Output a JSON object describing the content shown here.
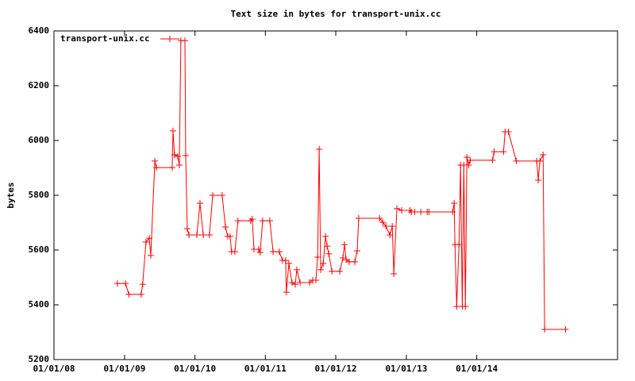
{
  "chart_data": {
    "type": "line",
    "title": "Text size in bytes for transport-unix.cc",
    "ylabel": "bytes",
    "legend": "top left",
    "x": [
      "2008-11-25",
      "2009-01-06",
      "2009-01-23",
      "2009-03-28",
      "2009-04-05",
      "2009-04-22",
      "2009-05-09",
      "2009-05-17",
      "2009-06-07",
      "2009-06-15",
      "2009-09-05",
      "2009-09-09",
      "2009-09-17",
      "2009-10-04",
      "2009-10-12",
      "2009-10-20",
      "2009-11-10",
      "2009-11-14",
      "2009-11-22",
      "2009-12-01",
      "2010-01-11",
      "2010-01-27",
      "2010-02-13",
      "2010-03-17",
      "2010-04-03",
      "2010-05-22",
      "2010-06-08",
      "2010-06-20",
      "2010-07-02",
      "2010-07-10",
      "2010-07-27",
      "2010-08-12",
      "2010-10-17",
      "2010-10-25",
      "2010-11-03",
      "2010-11-27",
      "2010-12-05",
      "2010-12-18",
      "2011-01-24",
      "2011-02-10",
      "2011-03-14",
      "2011-03-31",
      "2011-04-16",
      "2011-04-20",
      "2011-05-03",
      "2011-05-19",
      "2011-06-05",
      "2011-06-13",
      "2011-06-30",
      "2011-08-18",
      "2011-09-04",
      "2011-09-20",
      "2011-09-29",
      "2011-10-07",
      "2011-10-15",
      "2011-10-28",
      "2011-11-09",
      "2011-11-17",
      "2011-11-26",
      "2011-12-12",
      "2012-01-22",
      "2012-02-07",
      "2012-02-15",
      "2012-02-24",
      "2012-03-11",
      "2012-04-09",
      "2012-04-21",
      "2012-04-29",
      "2012-08-15",
      "2012-09-01",
      "2012-09-17",
      "2012-10-08",
      "2012-10-20",
      "2012-10-28",
      "2012-11-13",
      "2012-12-08",
      "2013-01-19",
      "2013-01-27",
      "2013-02-13",
      "2013-03-17",
      "2013-04-19",
      "2013-04-28",
      "2013-08-29",
      "2013-09-06",
      "2013-09-10",
      "2013-09-19",
      "2013-10-01",
      "2013-10-09",
      "2013-10-18",
      "2013-10-26",
      "2013-11-03",
      "2013-11-11",
      "2013-11-20",
      "2013-11-28",
      "2014-03-24",
      "2014-04-01",
      "2014-05-20",
      "2014-05-28",
      "2014-06-14",
      "2014-07-25",
      "2014-11-08",
      "2014-11-16",
      "2014-11-24",
      "2014-12-11",
      "2014-12-19",
      "2015-04-06"
    ],
    "series": [
      {
        "name": "transport-unix.cc",
        "color": "#ff0000",
        "values": [
          5478,
          5478,
          5438,
          5438,
          5475,
          5629,
          5643,
          5580,
          5925,
          5901,
          5901,
          6035,
          5948,
          5942,
          5910,
          6365,
          6365,
          5945,
          5678,
          5655,
          5655,
          5771,
          5655,
          5655,
          5800,
          5800,
          5684,
          5650,
          5650,
          5594,
          5594,
          5707,
          5707,
          5713,
          5603,
          5603,
          5591,
          5707,
          5707,
          5594,
          5594,
          5562,
          5562,
          5446,
          5551,
          5481,
          5475,
          5528,
          5481,
          5481,
          5490,
          5490,
          5574,
          5968,
          5528,
          5551,
          5650,
          5614,
          5586,
          5522,
          5522,
          5571,
          5620,
          5565,
          5557,
          5557,
          5597,
          5716,
          5716,
          5701,
          5687,
          5655,
          5687,
          5513,
          5751,
          5745,
          5745,
          5739,
          5739,
          5739,
          5739,
          5739,
          5739,
          5771,
          5620,
          5394,
          5620,
          5910,
          5394,
          5910,
          5394,
          5939,
          5910,
          5928,
          5928,
          5959,
          5959,
          6032,
          6032,
          5925,
          5925,
          5855,
          5925,
          5948,
          5310,
          5310
        ]
      }
    ],
    "xlim": [
      "2008-01-01",
      "2016-01-01"
    ],
    "xticks": [
      {
        "value": "2008-01-01",
        "label": "01/01/08"
      },
      {
        "value": "2009-01-01",
        "label": "01/01/09"
      },
      {
        "value": "2010-01-01",
        "label": "01/01/10"
      },
      {
        "value": "2011-01-01",
        "label": "01/01/11"
      },
      {
        "value": "2012-01-01",
        "label": "01/01/12"
      },
      {
        "value": "2013-01-01",
        "label": "01/01/13"
      },
      {
        "value": "2014-01-01",
        "label": "01/01/14"
      }
    ],
    "ylim": [
      5200,
      6400
    ],
    "yticks": [
      5200,
      5400,
      5600,
      5800,
      6000,
      6200,
      6400
    ],
    "grid": false
  }
}
